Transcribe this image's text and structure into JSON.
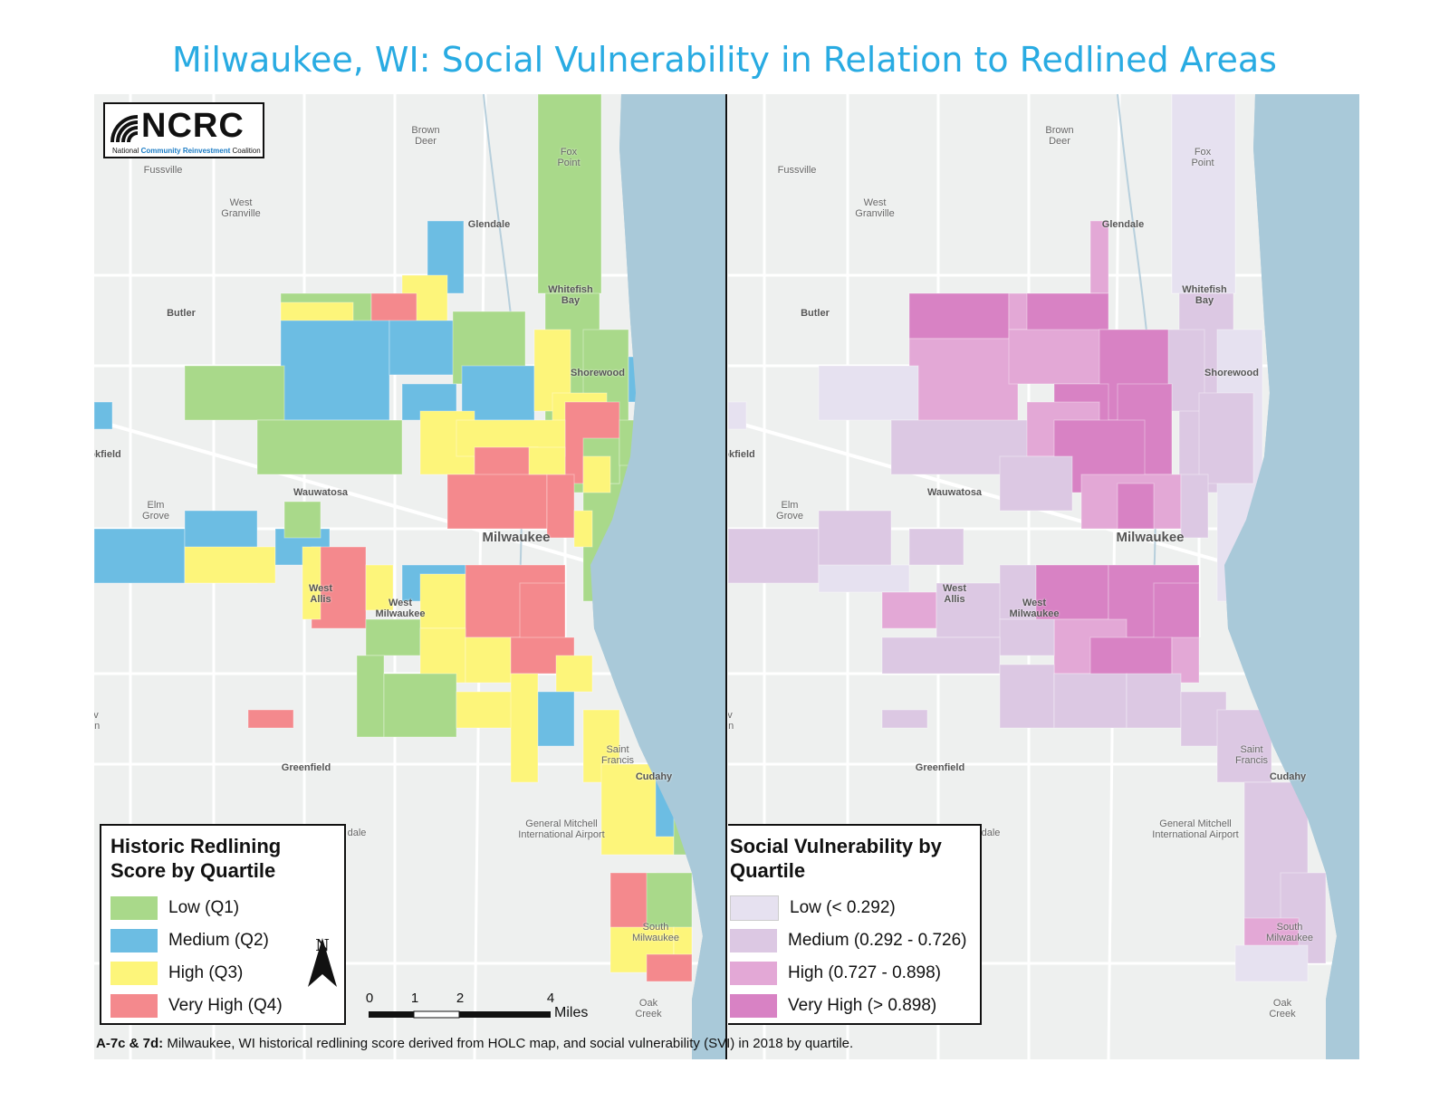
{
  "title": "Milwaukee, WI: Social Vulnerability in Relation to Redlined Areas",
  "logo": {
    "name": "NCRC",
    "subtitle_prefix": "National",
    "subtitle_highlight": "Community Reinvestment",
    "subtitle_suffix": "Coalition"
  },
  "place_labels": {
    "brown_deer": "Brown\nDeer",
    "fox_point": "Fox\nPoint",
    "fussville": "Fussville",
    "west_granville": "West\nGranville",
    "glendale": "Glendale",
    "butler": "Butler",
    "whitefish_bay": "Whitefish\nBay",
    "shorewood": "Shorewood",
    "brookfield": "okfield",
    "elm_grove": "Elm\nGrove",
    "wauwatosa": "Wauwatosa",
    "milwaukee": "Milwaukee",
    "west_allis": "West\nAllis",
    "west_milwaukee": "West\nMilwaukee",
    "greenfield": "Greenfield",
    "saint_francis": "Saint\nFrancis",
    "cudahy": "Cudahy",
    "airport": "General Mitchell\nInternational Airport",
    "south_milwaukee": "South\nMilwaukee",
    "oak_creek": "Oak\nCreek",
    "edge_vin": "v\nin",
    "dale": "dale"
  },
  "legend_left": {
    "title": "Historic Redlining\nScore by Quartile",
    "items": [
      {
        "label": "Low (Q1)",
        "color": "#a9d98a"
      },
      {
        "label": "Medium (Q2)",
        "color": "#6cbde3"
      },
      {
        "label": "High (Q3)",
        "color": "#fdf57a"
      },
      {
        "label": "Very High (Q4)",
        "color": "#f4898d"
      }
    ]
  },
  "legend_right": {
    "title": "Social Vulnerability by\nQuartile",
    "items": [
      {
        "label": "Low (< 0.292)",
        "color": "#e6e1f0"
      },
      {
        "label": "Medium (0.292 - 0.726)",
        "color": "#dcc8e3"
      },
      {
        "label": "High (0.727 - 0.898)",
        "color": "#e3a8d6"
      },
      {
        "label": "Very High (> 0.898)",
        "color": "#d882c4"
      }
    ]
  },
  "north_arrow": "N",
  "scale_bar": {
    "ticks": [
      "0",
      "1",
      "2",
      "4"
    ],
    "unit": "Miles"
  },
  "caption": {
    "label": "A-7c & 7d:",
    "text": " Milwaukee, WI historical redlining score derived from HOLC map, and social vulnerability (SVI) in 2018 by quartile."
  },
  "map_colors": {
    "water": "#a9c9d9",
    "land": "#eef0ef",
    "road": "#ffffff"
  }
}
